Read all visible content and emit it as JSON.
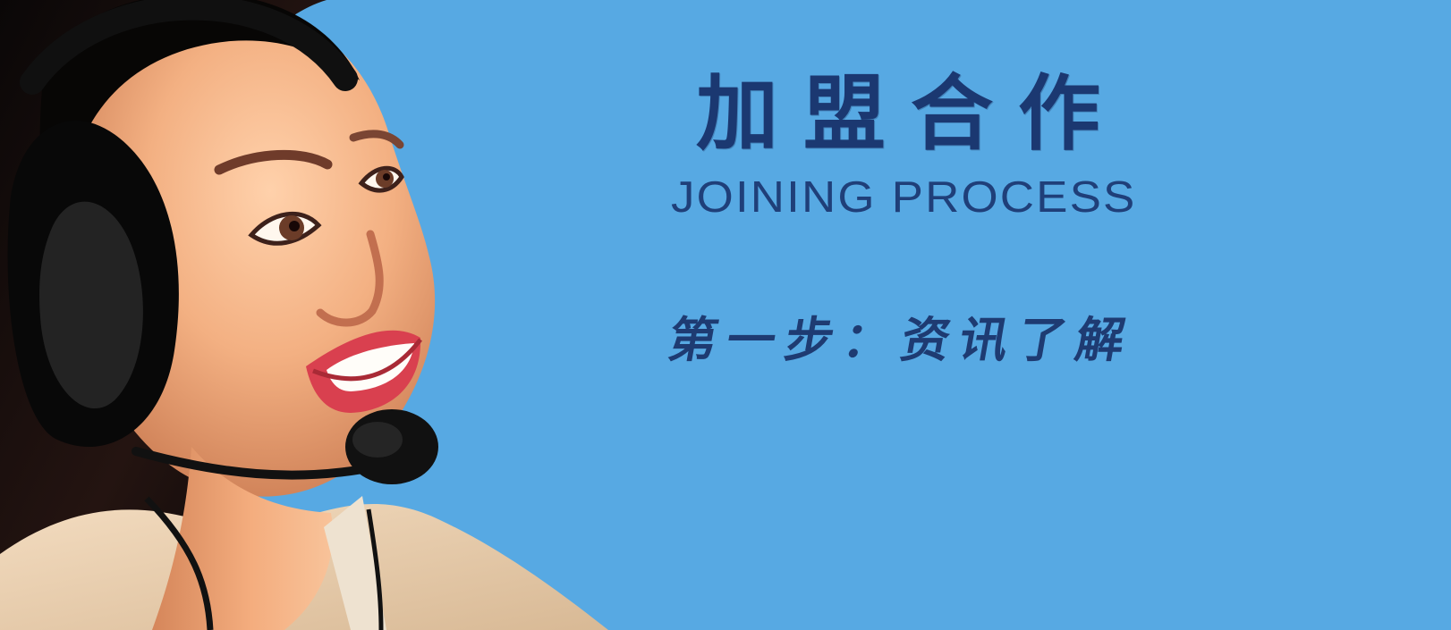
{
  "banner": {
    "title": "加盟合作",
    "subtitle": "JOINING PROCESS",
    "step": "第一步：资讯了解"
  },
  "colors": {
    "background": "#57a9e3",
    "text": "#1e3b72",
    "dark_panel": "#0f2440"
  },
  "image": {
    "subject": "smiling woman wearing headset"
  }
}
